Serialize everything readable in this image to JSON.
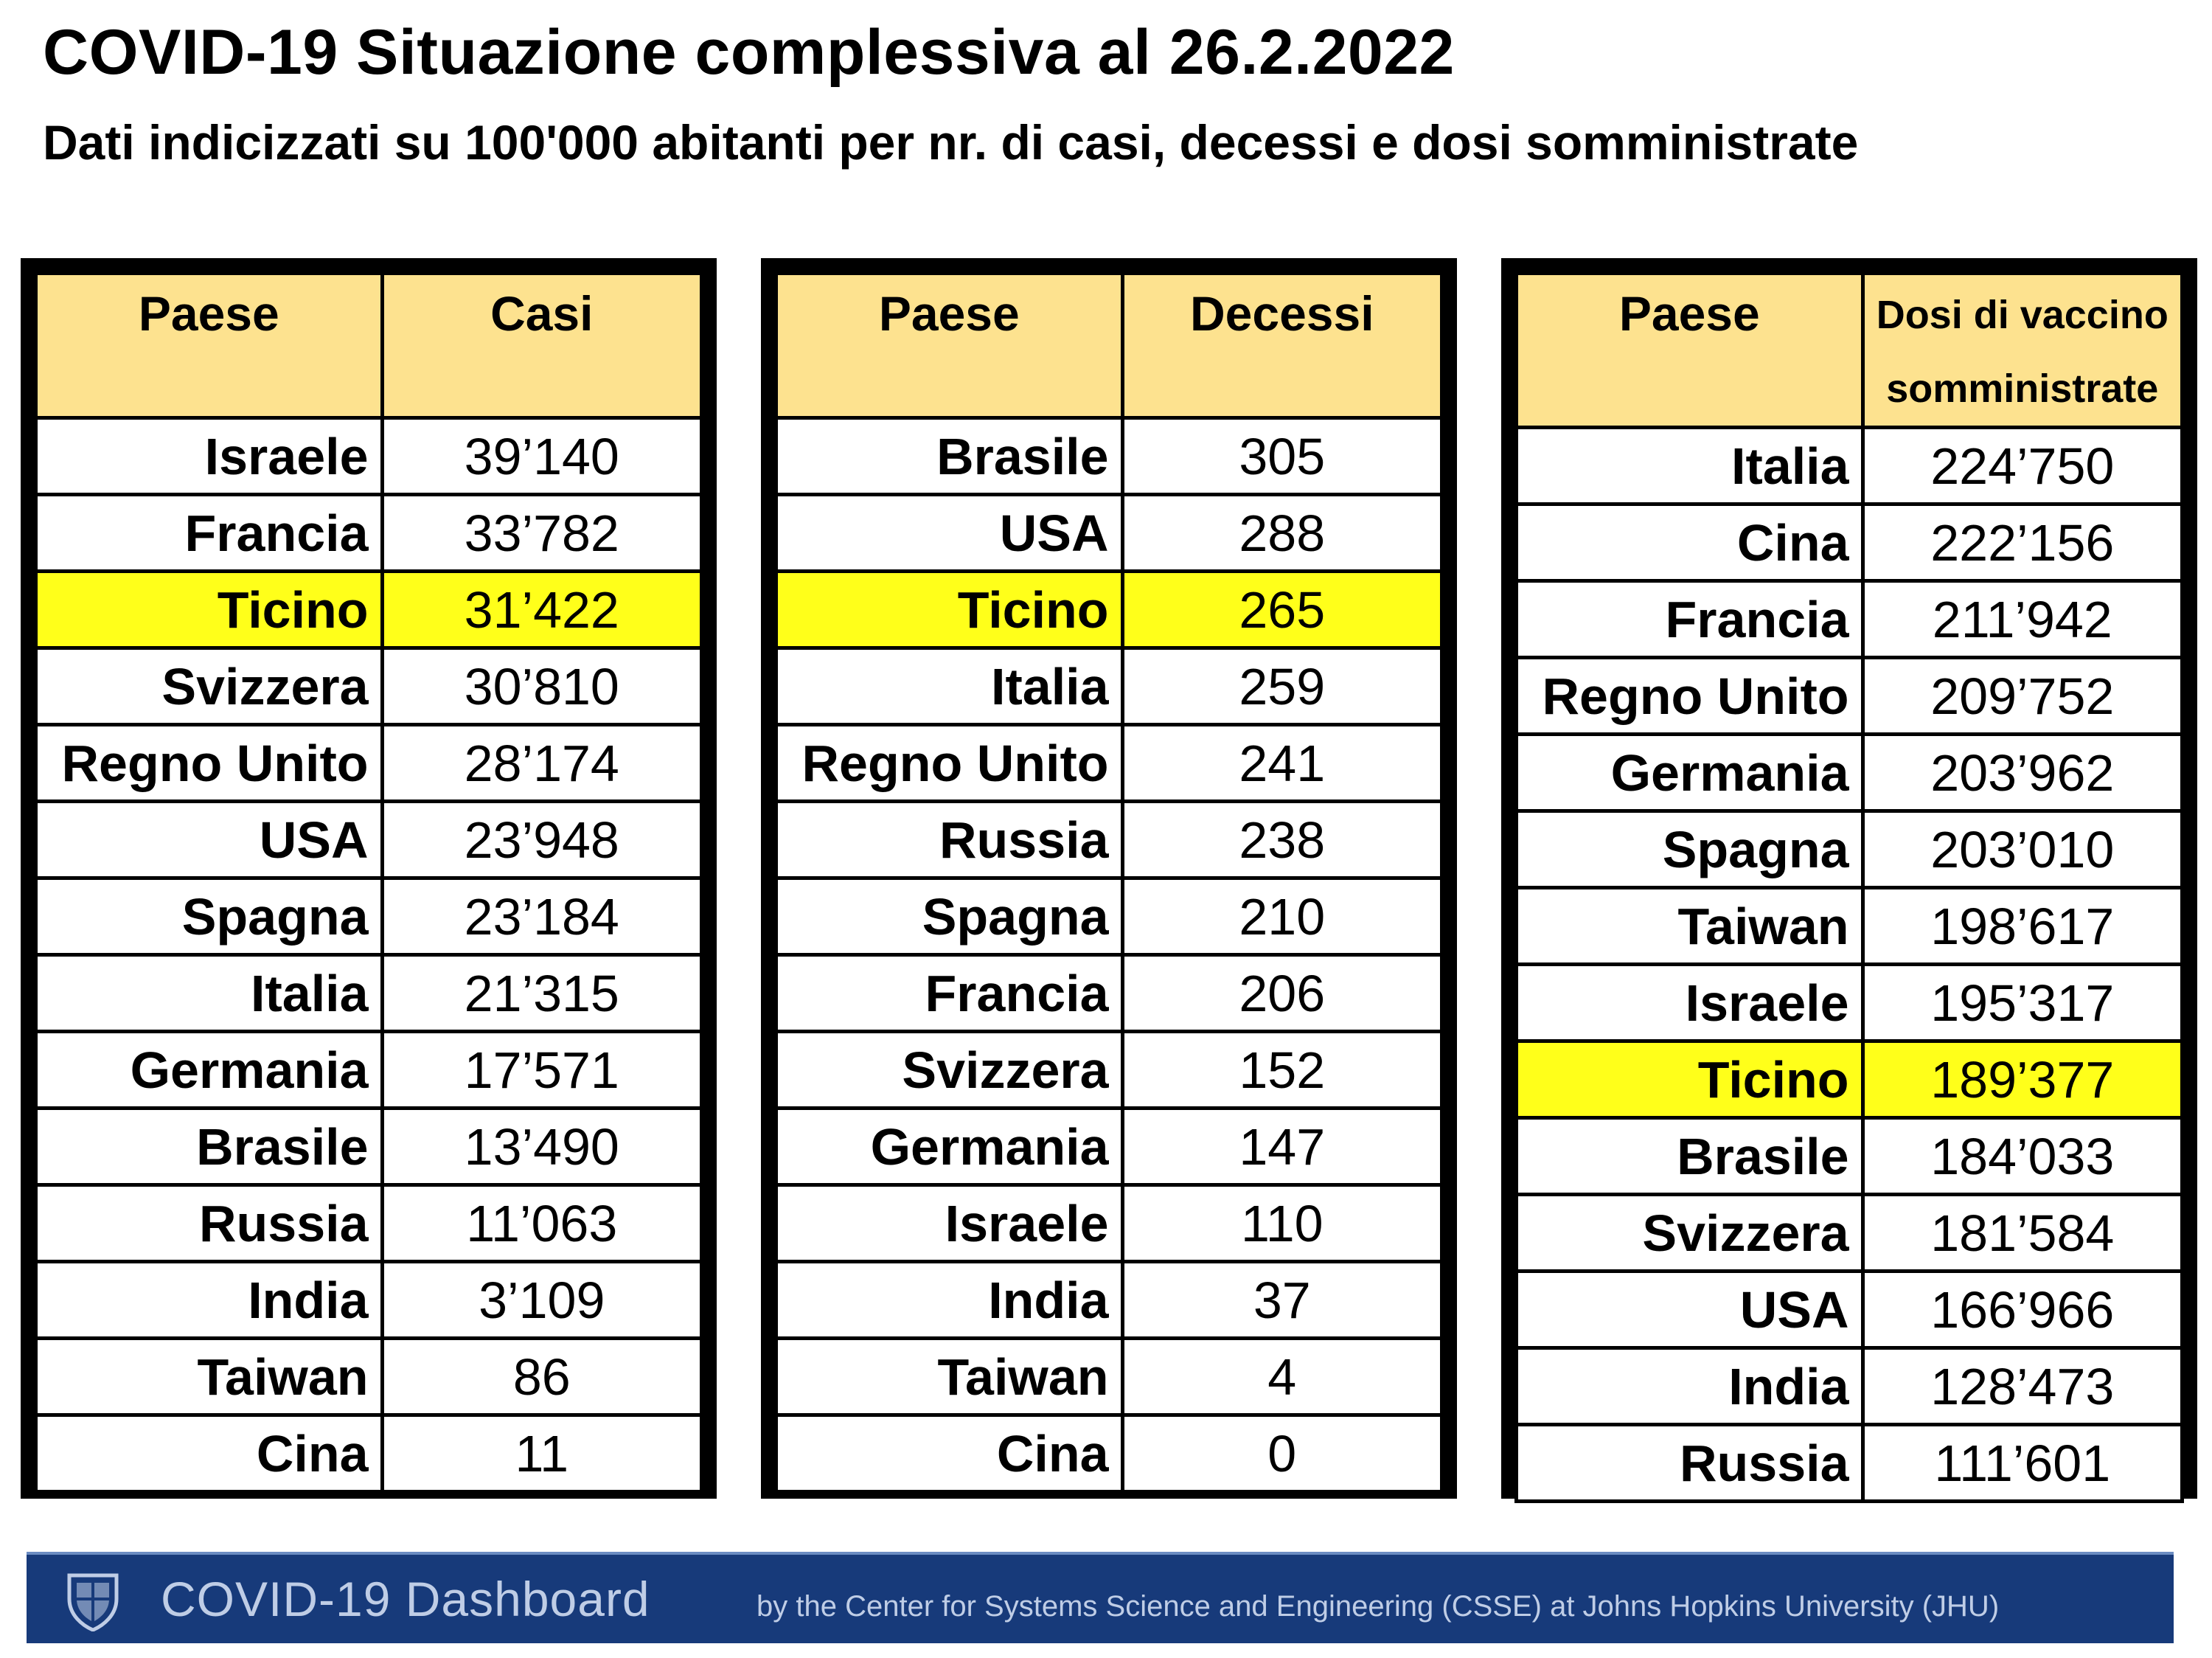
{
  "title": "COVID-19 Situazione complessiva al 26.2.2022",
  "subtitle": "Dati indicizzati su 100'000 abitanti per nr. di casi, decessi e dosi somministrate",
  "colors": {
    "header": "#fde28f",
    "highlight": "#ffff1a",
    "footer": "#173a7a"
  },
  "chart_data": [
    {
      "type": "table",
      "columns": [
        "Paese",
        "Casi"
      ],
      "highlight": "Ticino",
      "rows": [
        [
          "Israele",
          "39’140"
        ],
        [
          "Francia",
          "33’782"
        ],
        [
          "Ticino",
          "31’422"
        ],
        [
          "Svizzera",
          "30’810"
        ],
        [
          "Regno Unito",
          "28’174"
        ],
        [
          "USA",
          "23’948"
        ],
        [
          "Spagna",
          "23’184"
        ],
        [
          "Italia",
          "21’315"
        ],
        [
          "Germania",
          "17’571"
        ],
        [
          "Brasile",
          "13’490"
        ],
        [
          "Russia",
          "11’063"
        ],
        [
          "India",
          "3’109"
        ],
        [
          "Taiwan",
          "86"
        ],
        [
          "Cina",
          "11"
        ]
      ]
    },
    {
      "type": "table",
      "columns": [
        "Paese",
        "Decessi"
      ],
      "highlight": "Ticino",
      "rows": [
        [
          "Brasile",
          "305"
        ],
        [
          "USA",
          "288"
        ],
        [
          "Ticino",
          "265"
        ],
        [
          "Italia",
          "259"
        ],
        [
          "Regno Unito",
          "241"
        ],
        [
          "Russia",
          "238"
        ],
        [
          "Spagna",
          "210"
        ],
        [
          "Francia",
          "206"
        ],
        [
          "Svizzera",
          "152"
        ],
        [
          "Germania",
          "147"
        ],
        [
          "Israele",
          "110"
        ],
        [
          "India",
          "37"
        ],
        [
          "Taiwan",
          "4"
        ],
        [
          "Cina",
          "0"
        ]
      ]
    },
    {
      "type": "table",
      "columns": [
        "Paese",
        "Dosi di vaccino somministrate"
      ],
      "highlight": "Ticino",
      "rows": [
        [
          "Italia",
          "224’750"
        ],
        [
          "Cina",
          "222’156"
        ],
        [
          "Francia",
          "211’942"
        ],
        [
          "Regno Unito",
          "209’752"
        ],
        [
          "Germania",
          "203’962"
        ],
        [
          "Spagna",
          "203’010"
        ],
        [
          "Taiwan",
          "198’617"
        ],
        [
          "Israele",
          "195’317"
        ],
        [
          "Ticino",
          "189’377"
        ],
        [
          "Brasile",
          "184’033"
        ],
        [
          "Svizzera",
          "181’584"
        ],
        [
          "USA",
          "166’966"
        ],
        [
          "India",
          "128’473"
        ],
        [
          "Russia",
          "111’601"
        ]
      ]
    }
  ],
  "footer": {
    "brand": "COVID-19 Dashboard",
    "byline": "by the Center for Systems Science and Engineering (CSSE) at Johns Hopkins University (JHU)",
    "logo_icon": "shield-icon"
  }
}
